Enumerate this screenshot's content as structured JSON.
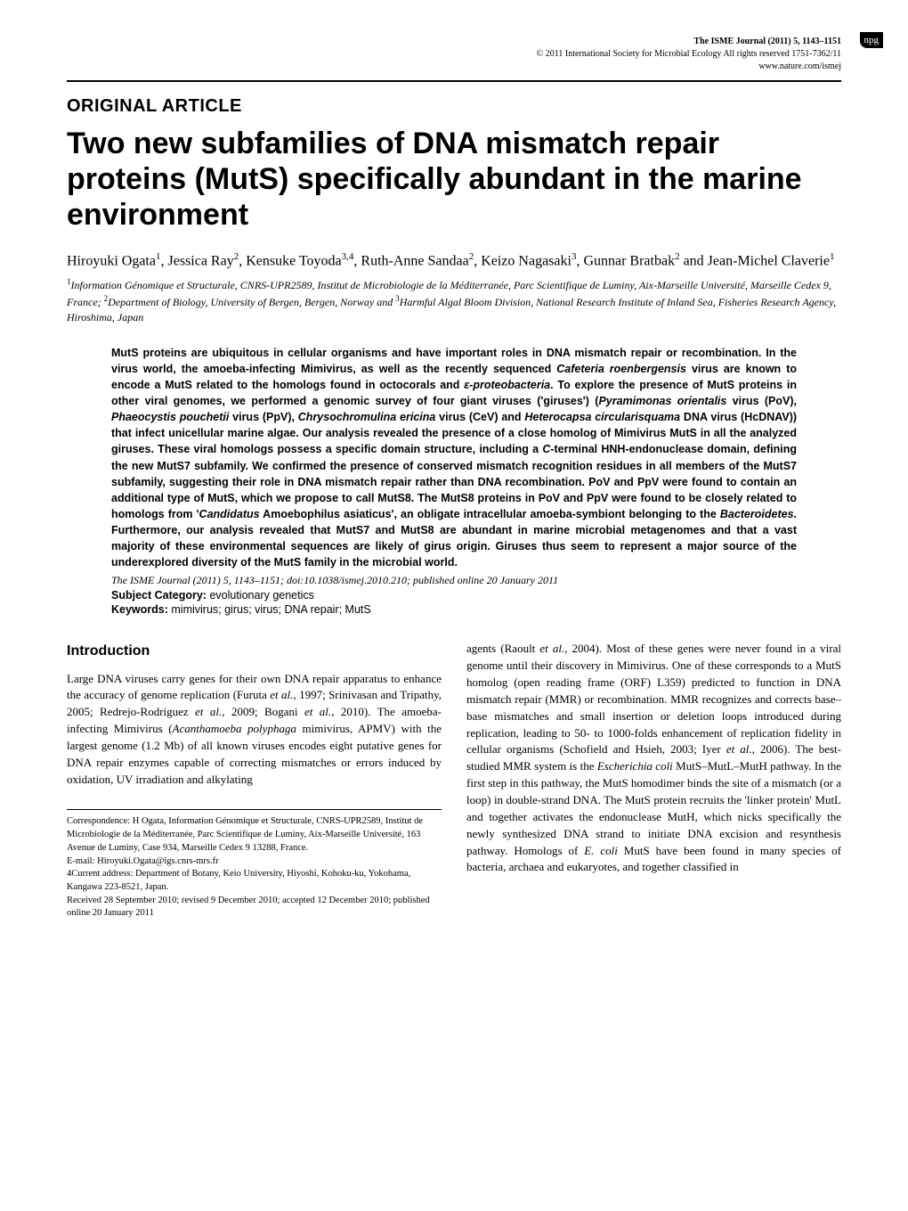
{
  "header": {
    "journal_line": "The ISME Journal (2011) 5, 1143–1151",
    "copyright": "© 2011 International Society for Microbial Ecology  All rights reserved 1751-7362/11",
    "url": "www.nature.com/ismej",
    "publisher_badge": "npg"
  },
  "article": {
    "category": "ORIGINAL ARTICLE",
    "title": "Two new subfamilies of DNA mismatch repair proteins (MutS) specifically abundant in the marine environment",
    "authors_html": "Hiroyuki Ogata<sup>1</sup>, Jessica Ray<sup>2</sup>, Kensuke Toyoda<sup>3,4</sup>, Ruth-Anne Sandaa<sup>2</sup>, Keizo Nagasaki<sup>3</sup>, Gunnar Bratbak<sup>2</sup> and Jean-Michel Claverie<sup>1</sup>",
    "affiliations_html": "<sup>1</sup>Information Génomique et Structurale, CNRS-UPR2589, Institut de Microbiologie de la Méditerranée, Parc Scientifique de Luminy, Aix-Marseille Université, Marseille Cedex 9, France; <sup>2</sup>Department of Biology, University of Bergen, Bergen, Norway and <sup>3</sup>Harmful Algal Bloom Division, National Research Institute of Inland Sea, Fisheries Research Agency, Hiroshima, Japan"
  },
  "abstract": {
    "text_html": "MutS proteins are ubiquitous in cellular organisms and have important roles in DNA mismatch repair or recombination. In the virus world, the amoeba-infecting Mimivirus, as well as the recently sequenced <span class='ital'>Cafeteria roenbergensis</span> virus are known to encode a MutS related to the homologs found in octocorals and <span class='ital'>ε-proteobacteria</span>. To explore the presence of MutS proteins in other viral genomes, we performed a genomic survey of four giant viruses ('giruses') (<span class='ital'>Pyramimonas orientalis</span> virus (PoV), <span class='ital'>Phaeocystis pouchetii</span> virus (PpV), <span class='ital'>Chrysochromulina ericina</span> virus (CeV) and <span class='ital'>Heterocapsa circularisquama</span> DNA virus (HcDNAV)) that infect unicellular marine algae. Our analysis revealed the presence of a close homolog of Mimivirus MutS in all the analyzed giruses. These viral homologs possess a specific domain structure, including a <span class='ital'>C</span>-terminal HNH-endonuclease domain, defining the new MutS7 subfamily. We confirmed the presence of conserved mismatch recognition residues in all members of the MutS7 subfamily, suggesting their role in DNA mismatch repair rather than DNA recombination. PoV and PpV were found to contain an additional type of MutS, which we propose to call MutS8. The MutS8 proteins in PoV and PpV were found to be closely related to homologs from '<span class='ital'>Candidatus</span> Amoebophilus asiaticus', an obligate intracellular amoeba-symbiont belonging to the <span class='ital'>Bacteroidetes</span>. Furthermore, our analysis revealed that MutS7 and MutS8 are abundant in marine microbial metagenomes and that a vast majority of these environmental sequences are likely of girus origin. Giruses thus seem to represent a major source of the underexplored diversity of the MutS family in the microbial world.",
    "citation": "The ISME Journal (2011) 5, 1143–1151; doi:10.1038/ismej.2010.210; published online 20 January 2011",
    "subject_label": "Subject Category:",
    "subject_value": " evolutionary genetics",
    "keywords_label": "Keywords:",
    "keywords_value": " mimivirus; girus; virus; DNA repair; MutS"
  },
  "body": {
    "section_heading": "Introduction",
    "left_col_html": "Large DNA viruses carry genes for their own DNA repair apparatus to enhance the accuracy of genome replication (Furuta <span class='col-italic'>et al.</span>, 1997; Srinivasan and Tripathy, 2005; Redrejo-Rodriguez <span class='col-italic'>et al.</span>, 2009; Bogani <span class='col-italic'>et al.</span>, 2010). The amoeba-infecting Mimivirus (<span class='col-italic'>Acanthamoeba polyphaga</span> mimivirus, APMV) with the largest genome (1.2 Mb) of all known viruses encodes eight putative genes for DNA repair enzymes capable of correcting mismatches or errors induced by oxidation, UV irradiation and alkylating",
    "right_col_html": "agents (Raoult <span class='col-italic'>et al.</span>, 2004). Most of these genes were never found in a viral genome until their discovery in Mimivirus. One of these corresponds to a MutS homolog (open reading frame (ORF) L359) predicted to function in DNA mismatch repair (MMR) or recombination. MMR recognizes and corrects base–base mismatches and small insertion or deletion loops introduced during replication, leading to 50- to 1000-folds enhancement of replication fidelity in cellular organisms (Schofield and Hsieh, 2003; Iyer <span class='col-italic'>et al.</span>, 2006). The best-studied MMR system is the <span class='col-italic'>Escherichia coli</span> MutS–MutL–MutH pathway. In the first step in this pathway, the MutS homodimer binds the site of a mismatch (or a loop) in double-strand DNA. The MutS protein recruits the 'linker protein' MutL and together activates the endonuclease MutH, which nicks specifically the newly synthesized DNA strand to initiate DNA excision and resynthesis pathway. Homologs of <span class='col-italic'>E. coli</span> MutS have been found in many species of bacteria, archaea and eukaryotes, and together classified in"
  },
  "correspondence": {
    "line1": "Correspondence: H Ogata, Information Génomique et Structurale, CNRS-UPR2589, Institut de Microbiologie de la Méditerranée, Parc Scientifique de Luminy, Aix-Marseille Université, 163 Avenue de Luminy, Case 934, Marseille Cedex 9 13288, France.",
    "email": "E-mail: Hiroyuki.Ogata@igs.cnrs-mrs.fr",
    "note4": "4Current address: Department of Botany, Keio University, Hiyoshi, Kohoku-ku, Yokohama, Kangawa 223-8521, Japan.",
    "received": "Received 28 September 2010; revised 9 December 2010; accepted 12 December 2010; published online 20 January 2011"
  }
}
